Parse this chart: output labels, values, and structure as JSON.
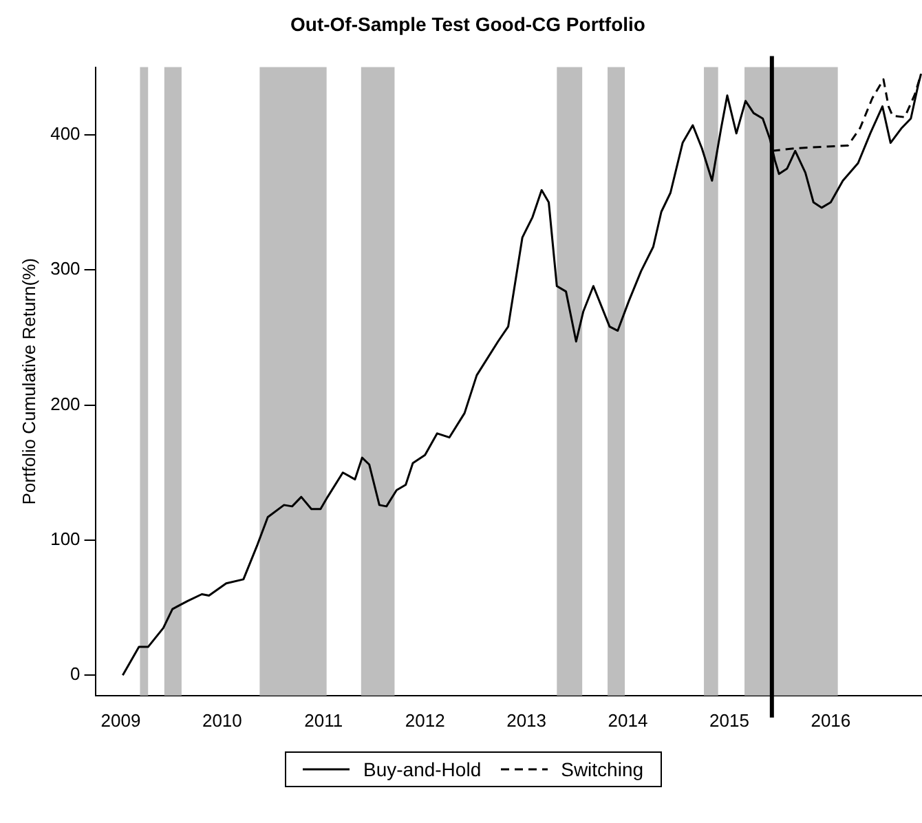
{
  "chart_data": {
    "type": "line",
    "title": "Out-Of-Sample Test Good-CG Portfolio",
    "ylabel": "Portfolio Cumulative Return(%)",
    "xlim": [
      2008.75,
      2016.9
    ],
    "xticks": [
      2009,
      2010,
      2011,
      2012,
      2013,
      2014,
      2015,
      2016
    ],
    "ylim": [
      -15,
      450
    ],
    "yticks": [
      0,
      100,
      200,
      300,
      400
    ],
    "grid": false,
    "legend": "bottom",
    "marker": "none",
    "series": [
      {
        "name": "Buy-and-Hold",
        "color": "#000000",
        "line_style": "solid",
        "x": [
          2009.02,
          2009.18,
          2009.27,
          2009.42,
          2009.51,
          2009.66,
          2009.8,
          2009.87,
          2010.04,
          2010.21,
          2010.35,
          2010.45,
          2010.61,
          2010.69,
          2010.78,
          2010.88,
          2010.97,
          2011.04,
          2011.19,
          2011.31,
          2011.38,
          2011.45,
          2011.55,
          2011.62,
          2011.72,
          2011.81,
          2011.88,
          2012,
          2012.12,
          2012.24,
          2012.39,
          2012.51,
          2012.72,
          2012.82,
          2012.96,
          2013.06,
          2013.15,
          2013.22,
          2013.3,
          2013.39,
          2013.49,
          2013.56,
          2013.66,
          2013.82,
          2013.9,
          2014.01,
          2014.13,
          2014.25,
          2014.33,
          2014.42,
          2014.54,
          2014.64,
          2014.73,
          2014.83,
          2014.92,
          2014.98,
          2015.07,
          2015.16,
          2015.24,
          2015.33,
          2015.4,
          2015.45,
          2015.49,
          2015.57,
          2015.65,
          2015.75,
          2015.83,
          2015.91,
          2016,
          2016.12,
          2016.27,
          2016.39,
          2016.51,
          2016.59,
          2016.7,
          2016.79,
          2016.86,
          2016.89
        ],
        "values": [
          0,
          21,
          21,
          35,
          49,
          55,
          60,
          59,
          68,
          71,
          97,
          117,
          126,
          125,
          132,
          123,
          123,
          132,
          150,
          145,
          161,
          156,
          126,
          125,
          137,
          141,
          157,
          163,
          179,
          176,
          194,
          222,
          247,
          258,
          324,
          339,
          359,
          350,
          288,
          284,
          247,
          269,
          288,
          258,
          255,
          277,
          299,
          317,
          343,
          357,
          394,
          407,
          390,
          366,
          405,
          429,
          401,
          425,
          416,
          412,
          397,
          381,
          371,
          375,
          388,
          372,
          350,
          346,
          350,
          366,
          379,
          401,
          421,
          394,
          405,
          412,
          436,
          445
        ]
      },
      {
        "name": "Switching",
        "color": "#000000",
        "line_style": "dashed",
        "x": [
          2015.42,
          2015.65,
          2016.17,
          2016.29,
          2016.41,
          2016.52,
          2016.57,
          2016.61,
          2016.73,
          2016.83,
          2016.89
        ],
        "values": [
          388,
          390,
          392,
          405,
          427,
          441,
          421,
          414,
          413,
          430,
          445
        ]
      }
    ],
    "bands": [
      {
        "axis": "x",
        "from": 2009.19,
        "to": 2009.27,
        "color": "#bebebe"
      },
      {
        "axis": "x",
        "from": 2009.43,
        "to": 2009.6,
        "color": "#bebebe"
      },
      {
        "axis": "x",
        "from": 2010.37,
        "to": 2011.03,
        "color": "#bebebe"
      },
      {
        "axis": "x",
        "from": 2011.37,
        "to": 2011.7,
        "color": "#bebebe"
      },
      {
        "axis": "x",
        "from": 2013.3,
        "to": 2013.55,
        "color": "#bebebe"
      },
      {
        "axis": "x",
        "from": 2013.8,
        "to": 2013.97,
        "color": "#bebebe"
      },
      {
        "axis": "x",
        "from": 2014.75,
        "to": 2014.89,
        "color": "#bebebe"
      },
      {
        "axis": "x",
        "from": 2015.15,
        "to": 2016.07,
        "color": "#bebebe"
      }
    ],
    "ref_lines": [
      {
        "axis": "x",
        "value": 2015.42,
        "color": "#000000",
        "line_style": "solid"
      }
    ]
  }
}
